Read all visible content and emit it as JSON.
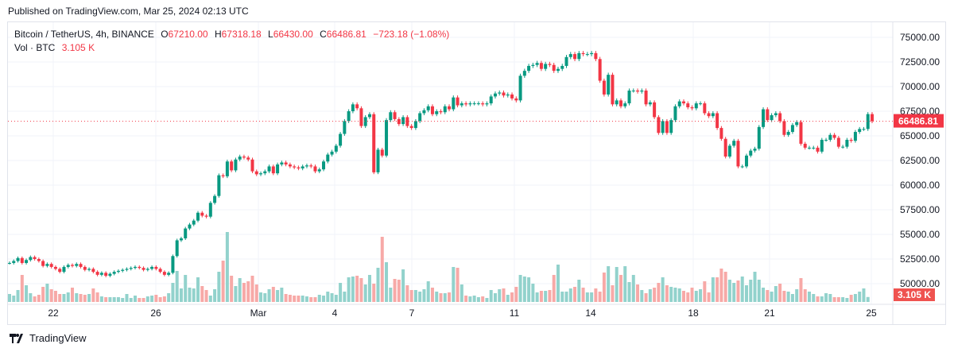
{
  "header": {
    "published": "Published on TradingView.com, Mar 25, 2024 02:13 UTC"
  },
  "legend": {
    "symbol": "Bitcoin / TetherUS, 4h, BINANCE",
    "open_label": "O",
    "open": "67210.00",
    "high_label": "H",
    "high": "67318.18",
    "low_label": "L",
    "low": "66430.00",
    "close_label": "C",
    "close": "66486.81",
    "change": "−723.18 (−1.08%)",
    "vol_label": "Vol · BTC",
    "vol_value": "3.105 K"
  },
  "footer": {
    "logo_text": "TradingView"
  },
  "colors": {
    "up": "#089981",
    "down": "#f23645",
    "vol_up": "#92d2cc",
    "vol_down": "#f7a9a7",
    "grid": "#f0f3fa"
  },
  "chart_data": {
    "type": "candlestick",
    "interval": "4h",
    "ylim": [
      48800,
      76000
    ],
    "y_ticks": [
      "75000.00",
      "72500.00",
      "70000.00",
      "67500.00",
      "65000.00",
      "62500.00",
      "60000.00",
      "57500.00",
      "55000.00",
      "52500.00",
      "50000.00"
    ],
    "x_ticks": [
      "22",
      "26",
      "Mar",
      "4",
      "7",
      "11",
      "14",
      "18",
      "21",
      "25"
    ],
    "last_price": 66486.81,
    "last_price_label": "66486.81",
    "last_volume_label": "3.105 K",
    "last_open": 67210.0,
    "close": [
      52100,
      52300,
      52600,
      52100,
      52400,
      52700,
      52500,
      52300,
      51800,
      52000,
      51700,
      51500,
      51200,
      51700,
      51900,
      51800,
      52000,
      51700,
      51400,
      51500,
      51200,
      50900,
      51100,
      50800,
      51000,
      51200,
      51300,
      51400,
      51500,
      51600,
      51700,
      51600,
      51400,
      51500,
      51700,
      51500,
      51200,
      50900,
      51100,
      52800,
      54400,
      54600,
      55600,
      56000,
      56400,
      57200,
      56900,
      56800,
      58200,
      58900,
      61000,
      60900,
      62400,
      61500,
      62600,
      62900,
      62800,
      62600,
      61400,
      61100,
      61200,
      61400,
      61900,
      61200,
      62100,
      62300,
      62100,
      61900,
      61800,
      61700,
      61900,
      62000,
      61900,
      61400,
      61600,
      62400,
      63100,
      63400,
      64000,
      65200,
      66500,
      67500,
      68200,
      67800,
      66000,
      66900,
      67200,
      61300,
      63600,
      63000,
      66600,
      67400,
      66700,
      66200,
      66900,
      66000,
      65800,
      66500,
      67300,
      67600,
      68000,
      67200,
      67500,
      67400,
      68000,
      67700,
      68900,
      68100,
      68300,
      68200,
      68300,
      68300,
      68300,
      68200,
      68300,
      69000,
      69300,
      69400,
      69100,
      69200,
      68800,
      68600,
      71100,
      71600,
      72100,
      72200,
      72400,
      71800,
      72300,
      72200,
      71600,
      71800,
      72100,
      73000,
      73300,
      72800,
      73400,
      73300,
      73300,
      73400,
      72800,
      70600,
      69200,
      71200,
      68200,
      68600,
      68000,
      68300,
      69600,
      69600,
      69500,
      69600,
      68200,
      68400,
      66900,
      65300,
      66500,
      65300,
      66600,
      68000,
      68500,
      68300,
      67900,
      67800,
      68300,
      68300,
      67300,
      67000,
      67300,
      65800,
      64700,
      62900,
      64000,
      64500,
      61900,
      61900,
      63000,
      63500,
      63700,
      65900,
      67700,
      66600,
      67100,
      67300,
      66500,
      65100,
      65400,
      66100,
      66400,
      64200,
      63800,
      63800,
      63800,
      63400,
      64600,
      64600,
      65100,
      64800,
      63900,
      63900,
      64600,
      64500,
      65400,
      65700,
      65700,
      67210,
      66486.81
    ],
    "volume_k": [
      5,
      4,
      7.5,
      17,
      10.5,
      5.5,
      3.5,
      4.5,
      9.5,
      11.5,
      8,
      7,
      5,
      5,
      6,
      9,
      5.5,
      5,
      4.5,
      5,
      8.5,
      6,
      3.5,
      3,
      3,
      3,
      3,
      2.5,
      5,
      2.5,
      4,
      2.5,
      2.5,
      3.5,
      4,
      4.5,
      3,
      3.5,
      5.5,
      12,
      19.5,
      8.5,
      17,
      9,
      8.5,
      15.5,
      10,
      7.5,
      4,
      8,
      19,
      26,
      44,
      16.5,
      10,
      15,
      12,
      13,
      16.5,
      11,
      6,
      5.5,
      8,
      9.5,
      7.5,
      9,
      5,
      4.5,
      4,
      4,
      4,
      3.5,
      3,
      3,
      4.5,
      4,
      6.5,
      5.5,
      4.5,
      12,
      6.5,
      15.5,
      16,
      16.5,
      15,
      11,
      17,
      11.5,
      21.5,
      41,
      25,
      9,
      14.5,
      14,
      20.5,
      10.5,
      7.5,
      7.5,
      6.5,
      8,
      13,
      9,
      6.5,
      5.5,
      5.5,
      6,
      22,
      21.5,
      11,
      4,
      3.5,
      4,
      3,
      3.5,
      2.5,
      7.5,
      5.5,
      8,
      8.5,
      4.5,
      6,
      9.5,
      17,
      16,
      15.5,
      11.5,
      6,
      7,
      7,
      7.5,
      17,
      23.5,
      6.5,
      6.5,
      8.5,
      9.5,
      14,
      9,
      6,
      6,
      8.5,
      6.5,
      18.5,
      22.5,
      10.5,
      22,
      17,
      22.5,
      12.5,
      17,
      11,
      7.5,
      5.5,
      8,
      9,
      12,
      15.5,
      10.5,
      9.5,
      9,
      8.5,
      7,
      6,
      9,
      7,
      8,
      13,
      6,
      15.5,
      15.5,
      21,
      19,
      14,
      12,
      13.5,
      16,
      10.5,
      14,
      19,
      14,
      9,
      7.5,
      6.5,
      10,
      11.5,
      7,
      6.5,
      5,
      8,
      15,
      8,
      6.5,
      5,
      3.5,
      3.5,
      5.5,
      5,
      3,
      3,
      3,
      2.5,
      4.5,
      5,
      6.5,
      8.5,
      3.105
    ]
  }
}
